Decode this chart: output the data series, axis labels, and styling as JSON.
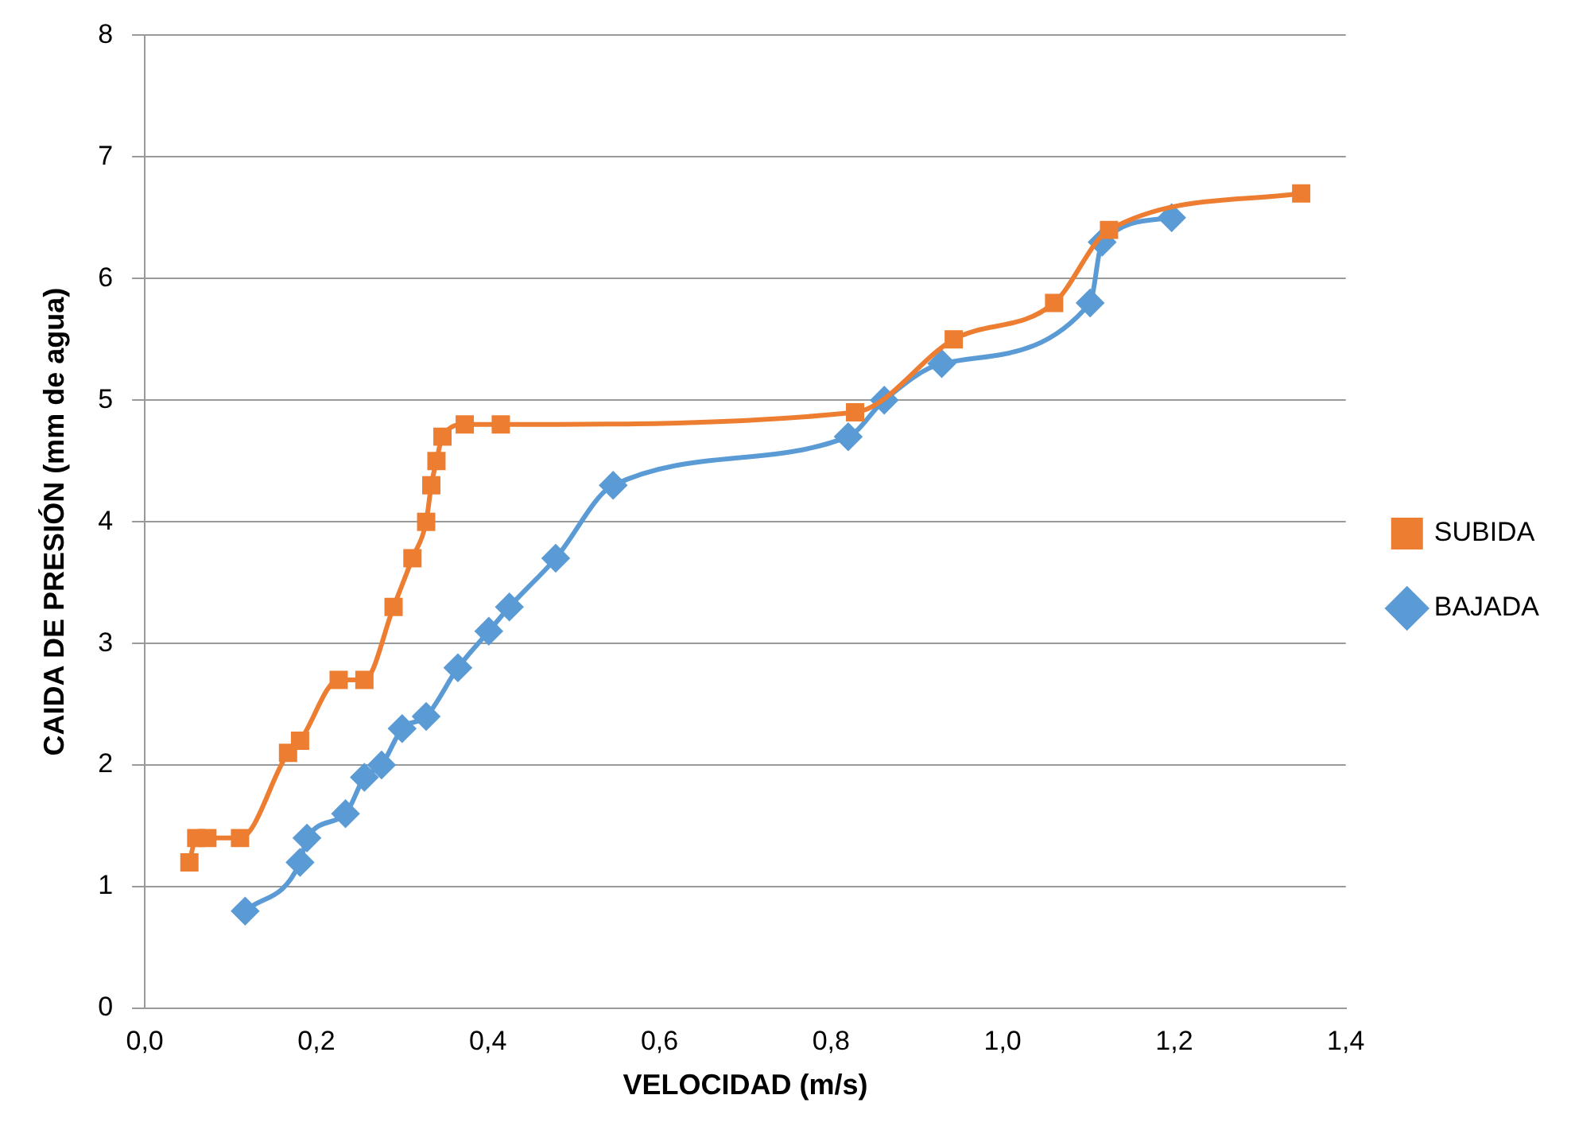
{
  "chart_data": {
    "type": "line",
    "xlabel": "VELOCIDAD (m/s)",
    "ylabel": "CAIDA DE PRESIÓN (mm de agua)",
    "xlim": [
      0,
      1.4
    ],
    "xticks": [
      {
        "value": 0,
        "label": "0,0"
      },
      {
        "value": 0.2,
        "label": "0,2"
      },
      {
        "value": 0.4,
        "label": "0,4"
      },
      {
        "value": 0.6,
        "label": "0,6"
      },
      {
        "value": 0.8,
        "label": "0,8"
      },
      {
        "value": 1,
        "label": "1,0"
      },
      {
        "value": 1.2,
        "label": "1,2"
      },
      {
        "value": 1.4,
        "label": "1,4"
      }
    ],
    "ylim": [
      0,
      8
    ],
    "yticks": [
      0,
      1,
      2,
      3,
      4,
      5,
      6,
      7,
      8
    ],
    "grid": "y",
    "legend": "right",
    "series": [
      {
        "name": "SUBIDA",
        "color": "#ed7d31",
        "marker": "square",
        "x": [
          0.052,
          0.06,
          0.073,
          0.111,
          0.167,
          0.181,
          0.226,
          0.256,
          0.29,
          0.312,
          0.328,
          0.334,
          0.34,
          0.347,
          0.373,
          0.415,
          0.828,
          0.943,
          1.06,
          1.124,
          1.348
        ],
        "values": [
          1.2,
          1.4,
          1.4,
          1.4,
          2.1,
          2.2,
          2.7,
          2.7,
          3.3,
          3.7,
          4.0,
          4.3,
          4.5,
          4.7,
          4.8,
          4.8,
          4.9,
          5.5,
          5.8,
          6.4,
          6.7
        ]
      },
      {
        "name": "BAJADA",
        "color": "#5b9bd5",
        "marker": "diamond",
        "x": [
          0.117,
          0.181,
          0.189,
          0.234,
          0.256,
          0.276,
          0.3,
          0.328,
          0.365,
          0.401,
          0.425,
          0.479,
          0.546,
          0.82,
          0.862,
          0.929,
          1.102,
          1.116,
          1.197
        ],
        "values": [
          0.8,
          1.2,
          1.4,
          1.6,
          1.9,
          2.0,
          2.3,
          2.4,
          2.8,
          3.1,
          3.3,
          3.7,
          4.3,
          4.7,
          5.0,
          5.3,
          5.8,
          6.3,
          6.5
        ]
      }
    ]
  }
}
